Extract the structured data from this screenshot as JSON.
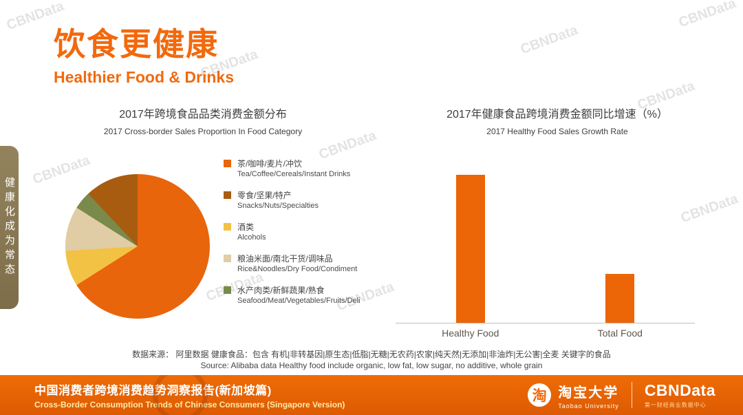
{
  "watermark": {
    "text": "CBNData"
  },
  "side_tab": {
    "text": "健康化成为常态"
  },
  "header": {
    "title_zh": "饮食更健康",
    "title_en": "Healthier Food & Drinks",
    "accent_color": "#F2690C"
  },
  "chart_data": [
    {
      "type": "pie",
      "title": "2017年跨境食品品类消费金额分布",
      "subtitle": "2017 Cross-border Sales Proportion In Food Category",
      "legend_position": "right",
      "slices": [
        {
          "label_zh": "茶/咖啡/麦片/冲饮",
          "label_en": "Tea/Coffee/Cereals/Instant Drinks",
          "color": "#E8650C",
          "value": 66
        },
        {
          "label_zh": "零食/坚果/特产",
          "label_en": "Snacks/Nuts/Specialties",
          "color": "#A85C10",
          "value": 12
        },
        {
          "label_zh": "酒类",
          "label_en": "Alcohols",
          "color": "#F2C245",
          "value": 8
        },
        {
          "label_zh": "粮油米面/南北干货/调味品",
          "label_en": "Rice&Noodles/Dry Food/Condiment",
          "color": "#E0CDA5",
          "value": 10
        },
        {
          "label_zh": "水产肉类/新鲜蔬果/熟食",
          "label_en": "Seafood/Meat/Vegetables/Fruits/Deli",
          "color": "#7A8A4A",
          "value": 4
        }
      ],
      "draw_order": [
        0,
        2,
        3,
        4,
        1
      ],
      "start_angle_deg": 0,
      "direction": "clockwise"
    },
    {
      "type": "bar",
      "title": "2017年健康食品跨境消费金额同比增速（%）",
      "subtitle": "2017 Healthy Food Sales Growth Rate",
      "categories": [
        "Healthy Food",
        "Total Food"
      ],
      "values": [
        100,
        33
      ],
      "bar_color": "#EC6507",
      "ylim": [
        0,
        103
      ],
      "grid": false
    }
  ],
  "source": {
    "line1": "数据来源： 阿里数据  健康食品：包含 有机|非转基因|原生态|低脂|无糖|无农药|农家|纯天然|无添加|非油炸|无公害|全麦 关键字的食品",
    "line2": "Source: Alibaba data  Healthy food include organic, low fat, low sugar, no additive, whole grain"
  },
  "footer": {
    "title_zh": "中国消费者跨境消费趋势洞察报告(新加坡篇)",
    "title_en": "Cross-Border Consumption Trends of Chinese Consumers  (Singapore Version)",
    "taobao_logo_char": "淘",
    "taobao_name": "淘宝大学",
    "taobao_name_en": "Taobao University",
    "cbndata_logo": "CBNData",
    "cbndata_sub": "第一财经商业数据中心",
    "bg_color": "#E8630A"
  }
}
